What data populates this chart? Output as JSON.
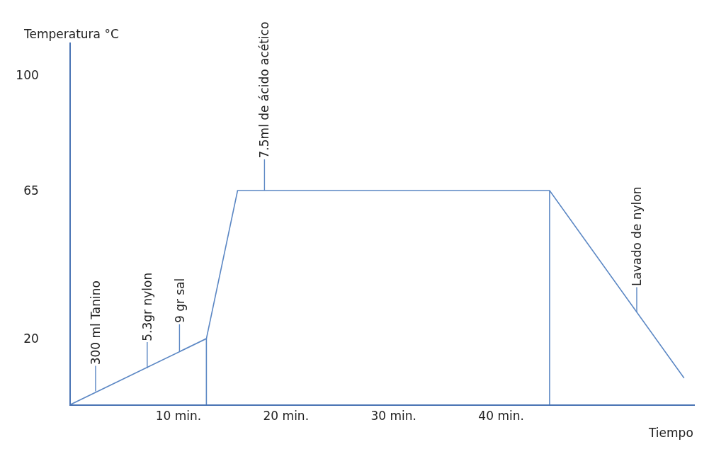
{
  "chart_data": {
    "type": "line",
    "xlabel": "Tiempo",
    "ylabel": "Temperatura °C",
    "xlim": [
      0,
      58
    ],
    "xticks": [
      {
        "value": 10,
        "label": "10 min."
      },
      {
        "value": 20,
        "label": "20 min."
      },
      {
        "value": 30,
        "label": "30 min."
      },
      {
        "value": 40,
        "label": "40 min."
      }
    ],
    "ylim": [
      0,
      110
    ],
    "yticks": [
      20,
      65,
      100
    ],
    "marker": "none",
    "line_style": "solid",
    "series": [
      {
        "color": "#5b87c4",
        "x": [
          0,
          12.6,
          15.5,
          44.5,
          57
        ],
        "values": [
          0,
          20,
          65,
          65,
          8
        ]
      },
      {
        "color": "#5b87c4",
        "x": [
          12.6,
          12.6
        ],
        "values": [
          0,
          20
        ]
      },
      {
        "color": "#5b87c4",
        "x": [
          44.5,
          44.5
        ],
        "values": [
          0,
          65
        ]
      }
    ],
    "annotations": [
      {
        "text": "300 ml Tanino",
        "x": 2.3,
        "y": 4
      },
      {
        "text": "5.3gr nylon",
        "x": 7.1,
        "y": 11
      },
      {
        "text": "9 gr sal",
        "x": 10.1,
        "y": 16
      },
      {
        "text": "7.5ml de ácido acético",
        "x": 18,
        "y": 65
      },
      {
        "text": "Lavado de nylon",
        "x": 52.6,
        "y": 28
      }
    ]
  }
}
